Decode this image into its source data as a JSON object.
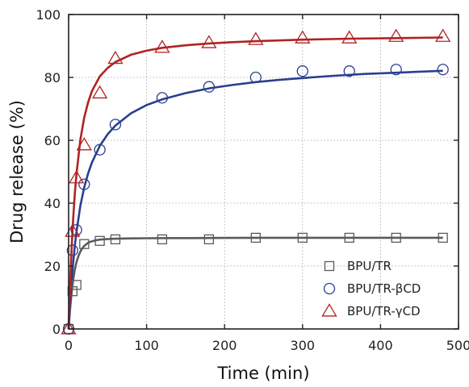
{
  "chart_data": {
    "type": "scatter",
    "xlabel": "Time (min)",
    "ylabel": "Drug release (%)",
    "xlim": [
      0,
      500
    ],
    "ylim": [
      0,
      100
    ],
    "xticks": [
      0,
      100,
      200,
      300,
      400,
      500
    ],
    "yticks": [
      0,
      20,
      40,
      60,
      80,
      100
    ],
    "grid": true,
    "legend_position": "bottom-right",
    "series": [
      {
        "name": "BPU/TR",
        "marker": "square",
        "color": "#5a5a5a",
        "x": [
          0,
          5,
          10,
          20,
          40,
          60,
          120,
          180,
          240,
          300,
          360,
          420,
          480
        ],
        "y": [
          0,
          12,
          14,
          27,
          28,
          28.5,
          28.5,
          28.5,
          29,
          29,
          29,
          29,
          29
        ],
        "fit_x": [
          0,
          2,
          4,
          6,
          8,
          10,
          13,
          16,
          20,
          25,
          30,
          35,
          40,
          50,
          60,
          80,
          100,
          130,
          160,
          200,
          250,
          300,
          350,
          400,
          450,
          480
        ],
        "fit_y": [
          0,
          6.6,
          11.9,
          15.9,
          18.9,
          21.2,
          23.5,
          25.1,
          26.4,
          27.4,
          27.9,
          28.2,
          28.4,
          28.6,
          28.7,
          28.8,
          28.85,
          28.9,
          28.9,
          28.95,
          29,
          29,
          29,
          29,
          29,
          29
        ]
      },
      {
        "name": "BPU/TR-βCD",
        "marker": "circle",
        "color": "#2b3f8f",
        "x": [
          0,
          5,
          10,
          20,
          40,
          60,
          120,
          180,
          240,
          300,
          360,
          420,
          480
        ],
        "y": [
          0,
          25,
          31.5,
          46,
          57,
          65,
          73.5,
          77,
          80,
          82,
          82,
          82.5,
          82.5
        ],
        "fit_x": [
          0,
          2,
          5,
          8,
          10,
          15,
          20,
          25,
          30,
          40,
          50,
          60,
          80,
          100,
          120,
          150,
          180,
          210,
          240,
          270,
          300,
          340,
          380,
          420,
          460,
          480
        ],
        "fit_y": [
          0,
          8.6,
          18.8,
          26.5,
          30.8,
          39.1,
          45.0,
          49.5,
          53.0,
          58.2,
          61.9,
          64.7,
          68.6,
          71.2,
          73.0,
          75.0,
          76.5,
          77.6,
          78.5,
          79.2,
          79.8,
          80.5,
          81.1,
          81.5,
          81.9,
          82.1
        ]
      },
      {
        "name": "BPU/TR-γCD",
        "marker": "triangle",
        "color": "#b02323",
        "x": [
          0,
          5,
          10,
          20,
          40,
          60,
          120,
          180,
          240,
          300,
          360,
          420,
          480
        ],
        "y": [
          0,
          31,
          48,
          58.5,
          75,
          86,
          89.5,
          91,
          92,
          92.5,
          92.5,
          93,
          93
        ],
        "fit_x": [
          0,
          2,
          4,
          6,
          8,
          10,
          15,
          20,
          25,
          30,
          40,
          50,
          60,
          80,
          100,
          120,
          150,
          180,
          210,
          240,
          300,
          360,
          420,
          480
        ],
        "fit_y": [
          0,
          15.0,
          26.6,
          35.7,
          43.1,
          49.1,
          60.1,
          67.2,
          72.1,
          75.7,
          80.3,
          83.0,
          84.9,
          87.2,
          88.5,
          89.4,
          90.2,
          90.8,
          91.2,
          91.5,
          92.0,
          92.3,
          92.5,
          92.7
        ]
      }
    ]
  }
}
